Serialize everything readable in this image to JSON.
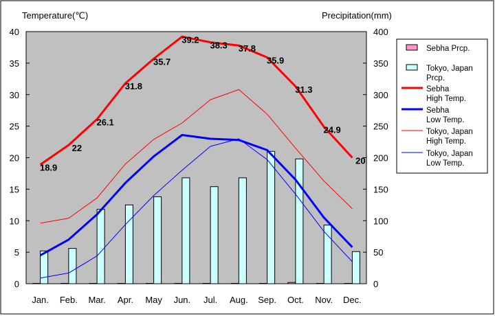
{
  "chart_data": {
    "type": "bar+line",
    "categories": [
      "Jan.",
      "Feb.",
      "Mar.",
      "Apr.",
      "May",
      "Jun.",
      "Jul.",
      "Aug.",
      "Sep.",
      "Oct.",
      "Nov.",
      "Dec."
    ],
    "y_left": {
      "label": "Temperature(℃)",
      "range": [
        0,
        40
      ],
      "ticks": [
        0,
        5,
        10,
        15,
        20,
        25,
        30,
        35,
        40
      ]
    },
    "y_right": {
      "label": "Precipitation(mm)",
      "range": [
        0,
        400
      ],
      "ticks": [
        0,
        50,
        100,
        150,
        200,
        250,
        300,
        350,
        400
      ]
    },
    "grid": false,
    "legend_position": "right",
    "bar_series": [
      {
        "name": "Sebha Prcp.",
        "color": "#ff99cc",
        "values": [
          0.5,
          0.5,
          0.5,
          0.5,
          0.5,
          0.5,
          0.5,
          0.5,
          0.5,
          2,
          0.5,
          0.5
        ]
      },
      {
        "name": "Tokyo, Japan Prcp.",
        "color": "#ccffff",
        "values": [
          52,
          56,
          118,
          125,
          138,
          168,
          154,
          168,
          210,
          198,
          93,
          51
        ]
      }
    ],
    "line_series": [
      {
        "name": "Sebha High Temp.",
        "color": "#ff0000",
        "width": "thick",
        "values": [
          18.9,
          22,
          26.1,
          31.8,
          35.7,
          39.2,
          38.3,
          37.8,
          35.9,
          31.3,
          24.9,
          20
        ],
        "labels": [
          "18.9",
          "22",
          "26.1",
          "31.8",
          "35.7",
          "39.2",
          "38.3",
          "37.8",
          "35.9",
          "31.3",
          "24.9",
          "20"
        ]
      },
      {
        "name": "Sebha Low Temp.",
        "color": "#0000ff",
        "width": "thick",
        "values": [
          4.5,
          7,
          11,
          16,
          20.2,
          23.6,
          23,
          22.8,
          21.2,
          16.5,
          10.5,
          5.8
        ]
      },
      {
        "name": "Tokyo, Japan High Temp.",
        "color": "#ff0000",
        "width": "thin",
        "values": [
          9.6,
          10.4,
          13.6,
          19,
          22.9,
          25.5,
          29.2,
          30.8,
          26.9,
          21.5,
          16.3,
          11.9
        ]
      },
      {
        "name": "Tokyo, Japan Low Temp.",
        "color": "#0000ff",
        "width": "thin",
        "values": [
          0.9,
          1.7,
          4.4,
          9.4,
          14,
          18,
          21.8,
          23,
          19.7,
          14.2,
          8.3,
          3.5
        ]
      }
    ],
    "legend": [
      {
        "kind": "bar",
        "lines": [
          "Sebha Prcp."
        ],
        "color": "#ff99cc"
      },
      {
        "kind": "bar",
        "lines": [
          "Tokyo, Japan",
          "Prcp."
        ],
        "color": "#ccffff"
      },
      {
        "kind": "line",
        "lines": [
          "Sebha",
          "High Temp."
        ],
        "color": "#ff0000",
        "width": "thick"
      },
      {
        "kind": "line",
        "lines": [
          "Sebha",
          "Low Temp."
        ],
        "color": "#0000ff",
        "width": "thick"
      },
      {
        "kind": "line",
        "lines": [
          "Tokyo, Japan",
          "High Temp."
        ],
        "color": "#ff0000",
        "width": "thin"
      },
      {
        "kind": "line",
        "lines": [
          "Tokyo, Japan",
          "Low Temp."
        ],
        "color": "#0000ff",
        "width": "thin"
      }
    ]
  },
  "colors": {
    "plot_background": "#c0c0c0",
    "frame": "#000000"
  }
}
